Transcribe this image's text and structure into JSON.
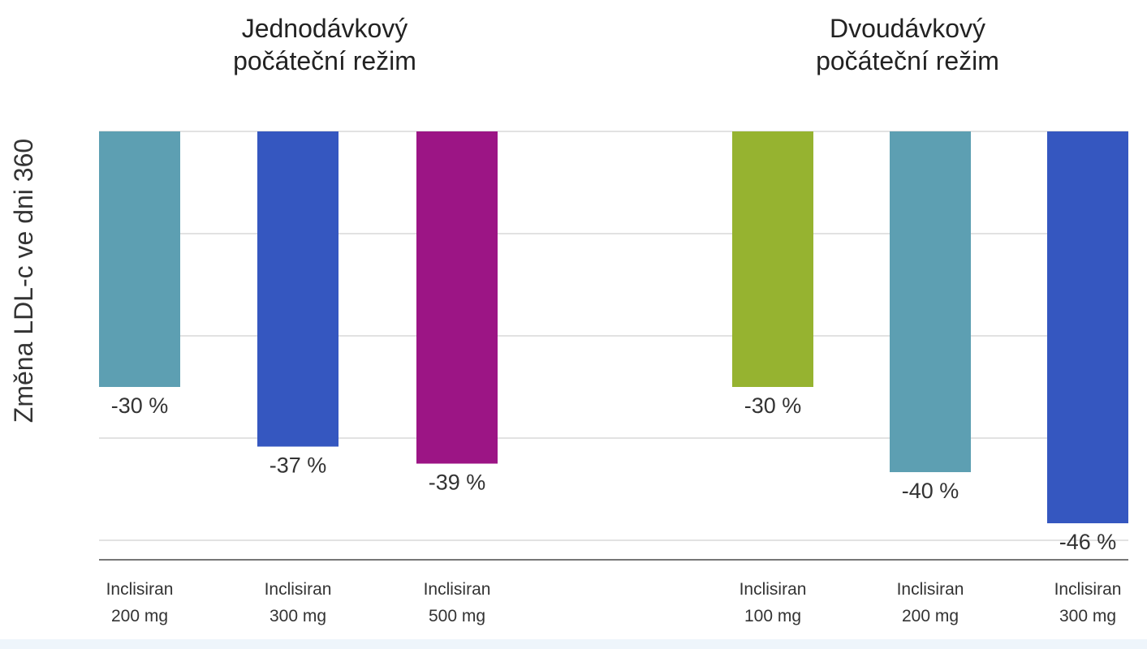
{
  "chart_data": {
    "type": "bar",
    "ylabel": "Změna LDL-c ve dni 360",
    "ylim": [
      -50,
      0
    ],
    "grid": true,
    "groups": [
      {
        "title_line1": "Jednodávkový",
        "title_line2": "počáteční režim",
        "bars": [
          {
            "label_line1": "Inclisiran",
            "label_line2": "200 mg",
            "value": -30,
            "value_label": "-30 %",
            "color": "#5d9fb2"
          },
          {
            "label_line1": "Inclisiran",
            "label_line2": "300 mg",
            "value": -37,
            "value_label": "-37 %",
            "color": "#3557c0"
          },
          {
            "label_line1": "Inclisiran",
            "label_line2": "500 mg",
            "value": -39,
            "value_label": "-39 %",
            "color": "#9c1585"
          }
        ]
      },
      {
        "title_line1": "Dvoudávkový",
        "title_line2": "počáteční režim",
        "bars": [
          {
            "label_line1": "Inclisiran",
            "label_line2": "100 mg",
            "value": -30,
            "value_label": "-30 %",
            "color": "#96b330"
          },
          {
            "label_line1": "Inclisiran",
            "label_line2": "200 mg",
            "value": -40,
            "value_label": "-40 %",
            "color": "#5d9fb2"
          },
          {
            "label_line1": "Inclisiran",
            "label_line2": "300 mg",
            "value": -46,
            "value_label": "-46 %",
            "color": "#3557c0"
          }
        ]
      }
    ]
  }
}
